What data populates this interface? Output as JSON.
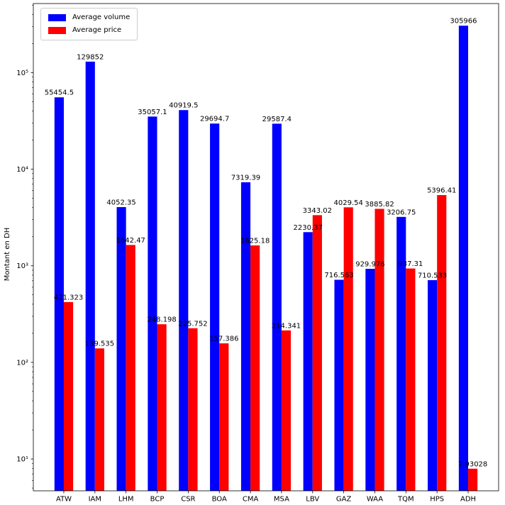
{
  "figure": {
    "background": "#ffffff",
    "axis_color": "#000000"
  },
  "chart_data": {
    "type": "bar",
    "title": "",
    "xlabel": "",
    "ylabel": "Montant en DH",
    "yscale": "log",
    "ylim": [
      4.68,
      518800
    ],
    "yticks": [
      10,
      100,
      1000,
      10000,
      100000
    ],
    "ytick_labels": [
      "10¹",
      "10²",
      "10³",
      "10⁴",
      "10⁵"
    ],
    "grid": false,
    "legend": {
      "position": "upper left",
      "entries": [
        "Average volume",
        "Average price"
      ]
    },
    "categories": [
      "ATW",
      "IAM",
      "LHM",
      "BCP",
      "CSR",
      "BOA",
      "CMA",
      "MSA",
      "LBV",
      "GAZ",
      "WAA",
      "TQM",
      "HPS",
      "ADH"
    ],
    "series": [
      {
        "name": "Average volume",
        "color": "#0000ff",
        "values": [
          55454.5,
          129852,
          4052.35,
          35057.1,
          40919.5,
          29694.7,
          7319.39,
          29587.4,
          2230.37,
          716.563,
          929.976,
          3206.75,
          710.533,
          305966
        ],
        "labels": [
          "55454.5",
          "129852",
          "4052.35",
          "35057.1",
          "40919.5",
          "29694.7",
          "7319.39",
          "29587.4",
          "2230.37",
          "716.563",
          "929.976",
          "3206.75",
          "710.533",
          "305966"
        ]
      },
      {
        "name": "Average price",
        "color": "#ff0000",
        "values": [
          421.323,
          139.535,
          1642.47,
          248.198,
          225.752,
          157.386,
          1625.18,
          214.341,
          3343.02,
          4029.54,
          3885.82,
          937.31,
          5396.41,
          7.93028
        ],
        "labels": [
          "421.323",
          "139.535",
          "1642.47",
          "248.198",
          "225.752",
          "157.386",
          "1625.18",
          "214.341",
          "3343.02",
          "4029.54",
          "3885.82",
          "937.31",
          "5396.41",
          "7.93028"
        ]
      }
    ]
  }
}
